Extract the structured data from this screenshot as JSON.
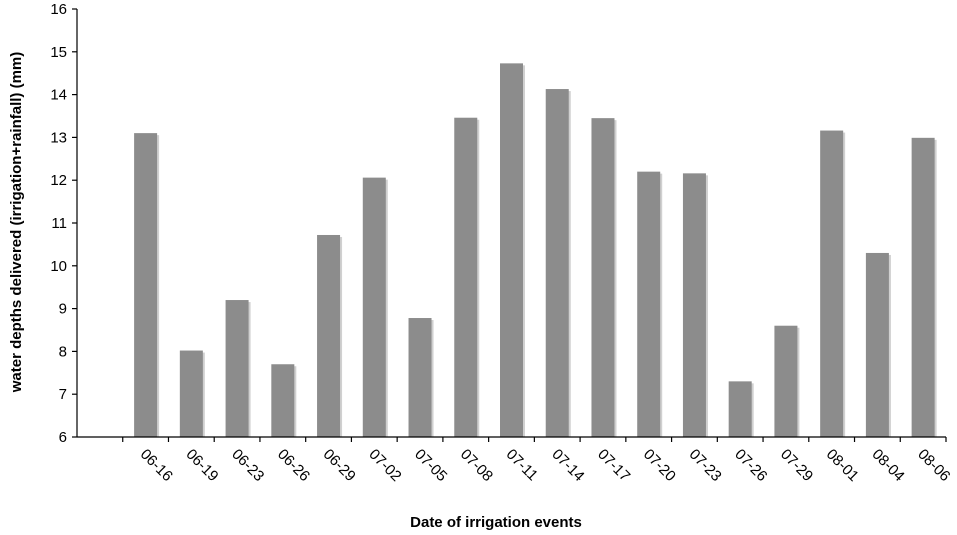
{
  "chart_data": {
    "type": "bar",
    "title": "",
    "xlabel": "Date of irrigation events",
    "ylabel": "water depths delivered (irrigation+rainfall) (mm)",
    "ylim": [
      6,
      16
    ],
    "yticks": [
      6,
      7,
      8,
      9,
      10,
      11,
      12,
      13,
      14,
      15,
      16
    ],
    "grid": false,
    "legend": "none",
    "bar_color": "#8c8c8c",
    "categories": [
      "06-16",
      "06-19",
      "06-23",
      "06-26",
      "06-29",
      "07-02",
      "07-05",
      "07-08",
      "07-11",
      "07-14",
      "07-17",
      "07-20",
      "07-23",
      "07-26",
      "07-29",
      "08-01",
      "08-04",
      "08-06"
    ],
    "values": [
      13.1,
      8.02,
      9.2,
      7.7,
      10.72,
      12.06,
      8.78,
      13.46,
      14.73,
      14.13,
      13.45,
      12.2,
      12.16,
      7.3,
      8.6,
      13.16,
      10.3,
      12.99
    ]
  }
}
